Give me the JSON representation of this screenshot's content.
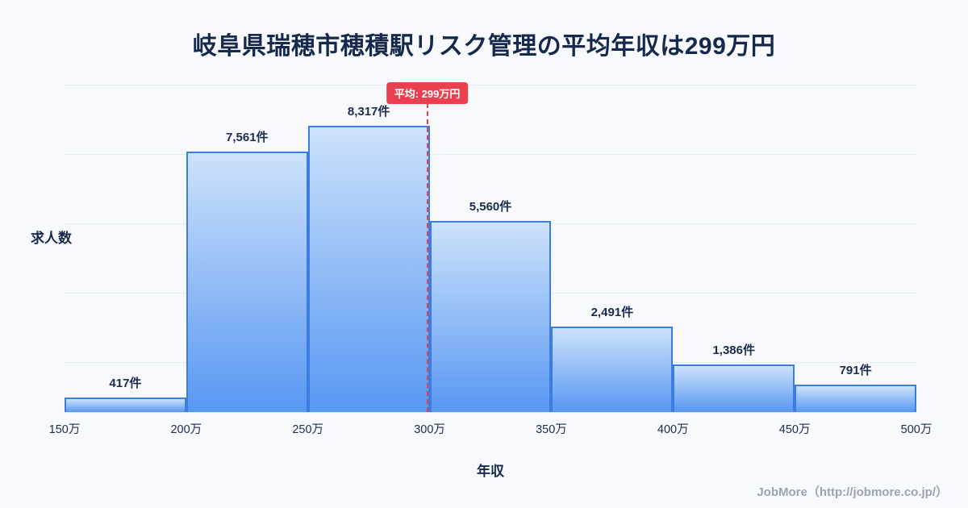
{
  "page": {
    "footer": "JobMore（http://jobmore.co.jp/）"
  },
  "chart_data": {
    "type": "bar",
    "title": "岐阜県瑞穂市穂積駅リスク管理の平均年収は299万円",
    "xlabel": "年収",
    "ylabel": "求人数",
    "x_ticks": [
      "150万",
      "200万",
      "250万",
      "300万",
      "350万",
      "400万",
      "450万",
      "500万"
    ],
    "categories": [
      "150万-200万",
      "200万-250万",
      "250万-300万",
      "300万-350万",
      "350万-400万",
      "400万-450万",
      "450万-500万"
    ],
    "values": [
      417,
      7561,
      8317,
      5560,
      2491,
      1386,
      791
    ],
    "value_labels": [
      "417件",
      "7,561件",
      "8,317件",
      "5,560件",
      "2,491件",
      "1,386件",
      "791件"
    ],
    "unit": "件",
    "average": {
      "label": "平均: 299万円",
      "value": 299
    },
    "x_range": [
      150,
      500
    ],
    "ylim": [
      0,
      8700
    ],
    "grid": true,
    "legend": "none",
    "colors": {
      "bar_gradient_top": "#cde2fb",
      "bar_gradient_bottom": "#5897f2",
      "bar_border": "#3d7de2",
      "average_line": "#e8404f",
      "title_text": "#16294c",
      "axis_text": "#1c2c4e",
      "footer_text": "#9aa4b2",
      "background": "#f7f9fc",
      "gridline": "#e7edf6"
    }
  }
}
